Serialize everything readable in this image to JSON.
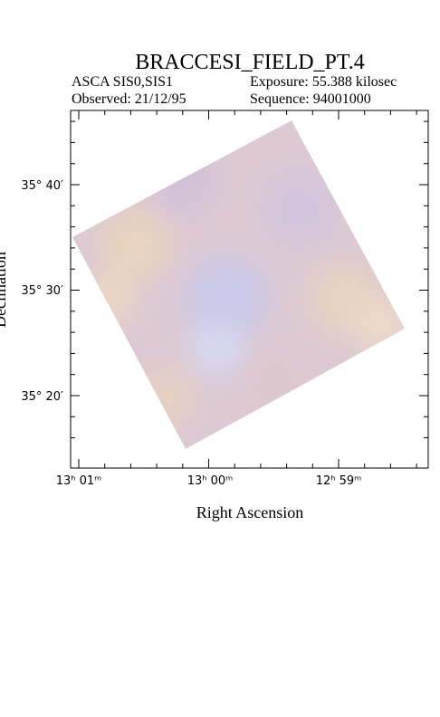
{
  "header": {
    "title": "BRACCESI_FIELD_PT.4",
    "instrument": "ASCA SIS0,SIS1",
    "exposure": "Exposure: 55.388 kilosec",
    "observed": "Observed: 21/12/95",
    "sequence": "Sequence: 94001000"
  },
  "axes": {
    "x_label": "Right Ascension",
    "y_label": "Declination",
    "x_tick_labels": [
      "13ʰ 01ᵐ",
      "13ʰ 00ᵐ",
      "12ʰ 59ᵐ"
    ],
    "y_tick_labels": [
      "35° 40′",
      "35° 30′",
      "35° 20′"
    ]
  }
}
